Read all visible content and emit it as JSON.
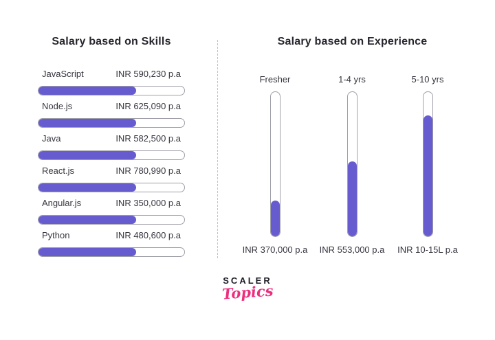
{
  "colors": {
    "background": "#ffffff",
    "accent_purple": "#665ccf",
    "track_border": "#9e9ea8",
    "heading_text": "#26262e",
    "body_text": "#35353f",
    "logo_pink": "#ed2e7e",
    "divider": "#c0c0c8"
  },
  "left_panel": {
    "title": "Salary based on Skills",
    "skills": [
      {
        "label": "JavaScript",
        "value": "INR 590,230 p.a",
        "fill_pct": 67
      },
      {
        "label": "Node.js",
        "value": "INR 625,090 p.a",
        "fill_pct": 67
      },
      {
        "label": "Java",
        "value": "INR 582,500 p.a",
        "fill_pct": 67
      },
      {
        "label": "React.js",
        "value": "INR 780,990 p.a",
        "fill_pct": 67
      },
      {
        "label": "Angular.js",
        "value": "INR 350,000 p.a",
        "fill_pct": 67
      },
      {
        "label": "Python",
        "value": "INR 480,600 p.a",
        "fill_pct": 67
      }
    ]
  },
  "right_panel": {
    "title": "Salary based on Experience",
    "experience": [
      {
        "label": "Fresher",
        "value": "INR 370,000 p.a",
        "fill_pct": 25
      },
      {
        "label": "1-4 yrs",
        "value": "INR 553,000 p.a",
        "fill_pct": 52
      },
      {
        "label": "5-10 yrs",
        "value": "INR 10-15L p.a",
        "fill_pct": 84
      }
    ]
  },
  "logo": {
    "brand": "SCALER",
    "sub_brand": "Topics"
  },
  "chart_data": [
    {
      "type": "bar",
      "orientation": "horizontal",
      "title": "Salary based on Skills",
      "categories": [
        "JavaScript",
        "Node.js",
        "Java",
        "React.js",
        "Angular.js",
        "Python"
      ],
      "values": [
        590230,
        625090,
        582500,
        780990,
        350000,
        480600
      ],
      "value_labels": [
        "INR 590,230 p.a",
        "INR 625,090 p.a",
        "INR 582,500 p.a",
        "INR 780,990 p.a",
        "INR 350,000 p.a",
        "INR 480,600 p.a"
      ],
      "unit": "INR per annum",
      "bar_fill_pct_drawn": [
        67,
        67,
        67,
        67,
        67,
        67
      ],
      "note": "all bars are drawn with equal fill length regardless of value; values shown as text labels"
    },
    {
      "type": "bar",
      "orientation": "vertical",
      "title": "Salary based on Experience",
      "categories": [
        "Fresher",
        "1-4 yrs",
        "5-10 yrs"
      ],
      "values": [
        370000,
        553000,
        null
      ],
      "value_labels": [
        "INR 370,000 p.a",
        "INR 553,000 p.a",
        "INR 10-15L p.a"
      ],
      "unit": "INR per annum",
      "bar_fill_pct_drawn": [
        25,
        52,
        84
      ],
      "note": "third bar labeled as range 10-15 lakh INR per annum"
    }
  ]
}
